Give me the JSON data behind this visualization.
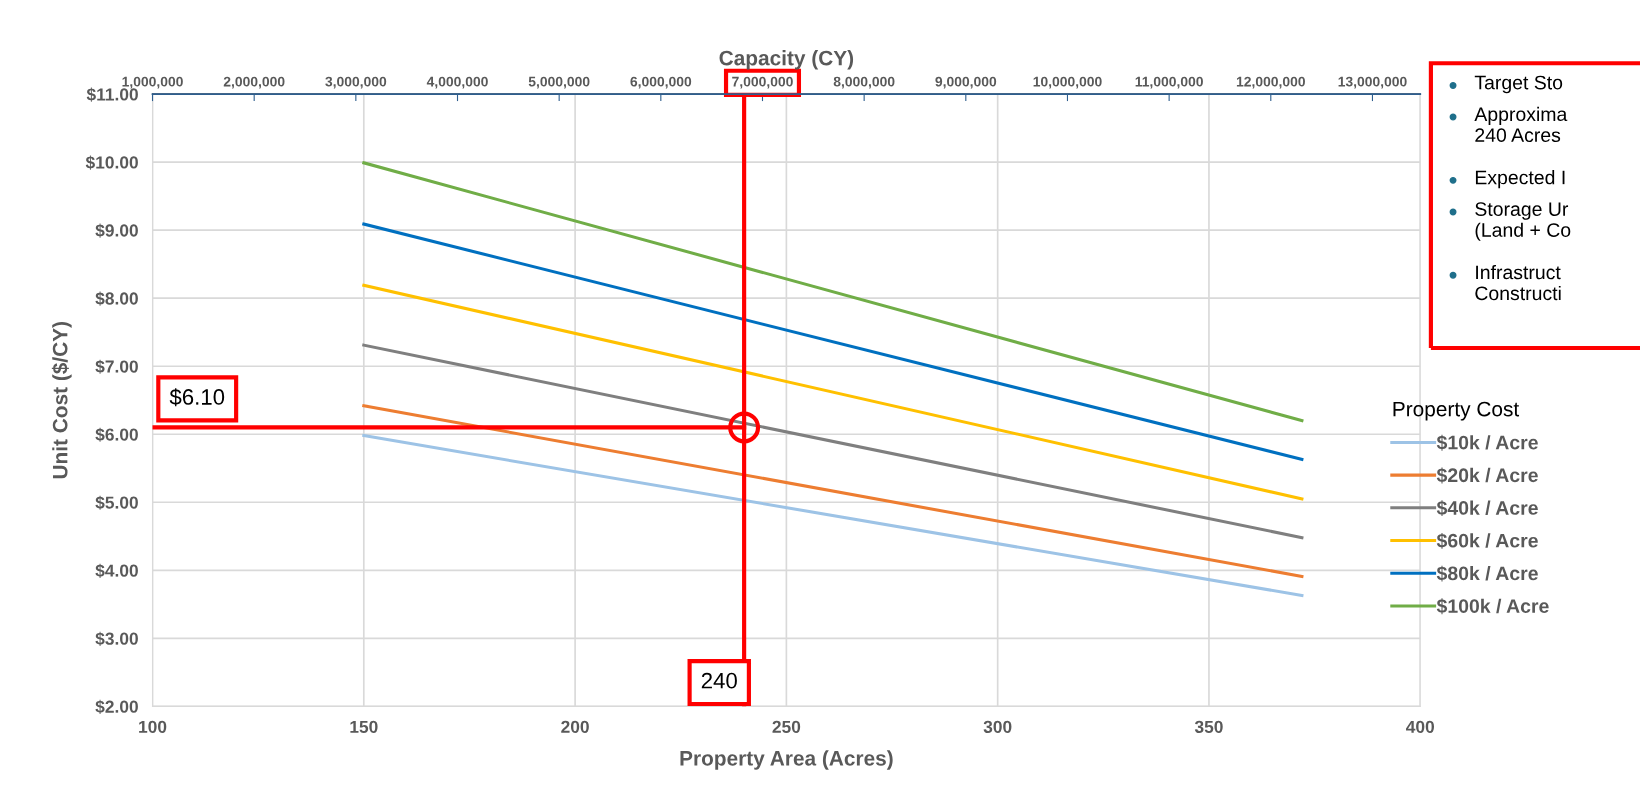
{
  "chart_data": {
    "type": "line",
    "x": [
      150,
      372
    ],
    "xlabel": "Property Area (Acres)",
    "ylabel": "Unit Cost ($/CY)",
    "x2label": "Capacity (CY)",
    "legend_title": "Property Cost",
    "legend": "right",
    "grid": true,
    "marker": "none",
    "line_style": "solid",
    "series": [
      {
        "name": "$10k / Acre",
        "color": "#9dc3e6",
        "values": [
          5.98,
          3.63
        ]
      },
      {
        "name": "$20k / Acre",
        "color": "#ed7d31",
        "values": [
          6.42,
          3.91
        ]
      },
      {
        "name": "$40k / Acre",
        "color": "#7f7f7f",
        "values": [
          7.31,
          4.48
        ]
      },
      {
        "name": "$60k / Acre",
        "color": "#ffc000",
        "values": [
          8.19,
          5.05
        ]
      },
      {
        "name": "$80k / Acre",
        "color": "#0070c0",
        "values": [
          9.09,
          5.63
        ]
      },
      {
        "name": "$100k / Acre",
        "color": "#70ad47",
        "values": [
          9.99,
          6.2
        ]
      }
    ],
    "xlim": [
      100,
      400
    ],
    "xticks": [
      100,
      150,
      200,
      250,
      300,
      350,
      400
    ],
    "ylim": [
      2,
      11
    ],
    "yticks": [
      {
        "value": 2,
        "label": "$2.00"
      },
      {
        "value": 3,
        "label": "$3.00"
      },
      {
        "value": 4,
        "label": "$4.00"
      },
      {
        "value": 5,
        "label": "$5.00"
      },
      {
        "value": 6,
        "label": "$6.00"
      },
      {
        "value": 7,
        "label": "$7.00"
      },
      {
        "value": 8,
        "label": "$8.00"
      },
      {
        "value": 9,
        "label": "$9.00"
      },
      {
        "value": 10,
        "label": "$10.00"
      },
      {
        "value": 11,
        "label": "$11.00"
      }
    ],
    "x2lim": [
      1000000,
      13470000
    ],
    "x2ticks": [
      {
        "value": 1000000,
        "label": "1,000,000"
      },
      {
        "value": 2000000,
        "label": "2,000,000"
      },
      {
        "value": 3000000,
        "label": "3,000,000"
      },
      {
        "value": 4000000,
        "label": "4,000,000"
      },
      {
        "value": 5000000,
        "label": "5,000,000"
      },
      {
        "value": 6000000,
        "label": "6,000,000"
      },
      {
        "value": 7000000,
        "label": "7,000,000"
      },
      {
        "value": 8000000,
        "label": "8,000,000"
      },
      {
        "value": 9000000,
        "label": "9,000,000"
      },
      {
        "value": 10000000,
        "label": "10,000,000"
      },
      {
        "value": 11000000,
        "label": "11,000,000"
      },
      {
        "value": 12000000,
        "label": "12,000,000"
      },
      {
        "value": 13000000,
        "label": "13,000,000"
      }
    ],
    "ref_lines": [
      {
        "axis": "x",
        "value": 240,
        "label": "240",
        "color": "#ff0000"
      },
      {
        "axis": "y",
        "value": 6.1,
        "label": "$6.10",
        "color": "#ff0000"
      }
    ],
    "annotations": [
      "Target Sto",
      "Approxima\n240 Acres",
      "Expected I",
      "Storage Ur\n(Land + Co",
      "Infrastruct\nConstructi"
    ]
  }
}
